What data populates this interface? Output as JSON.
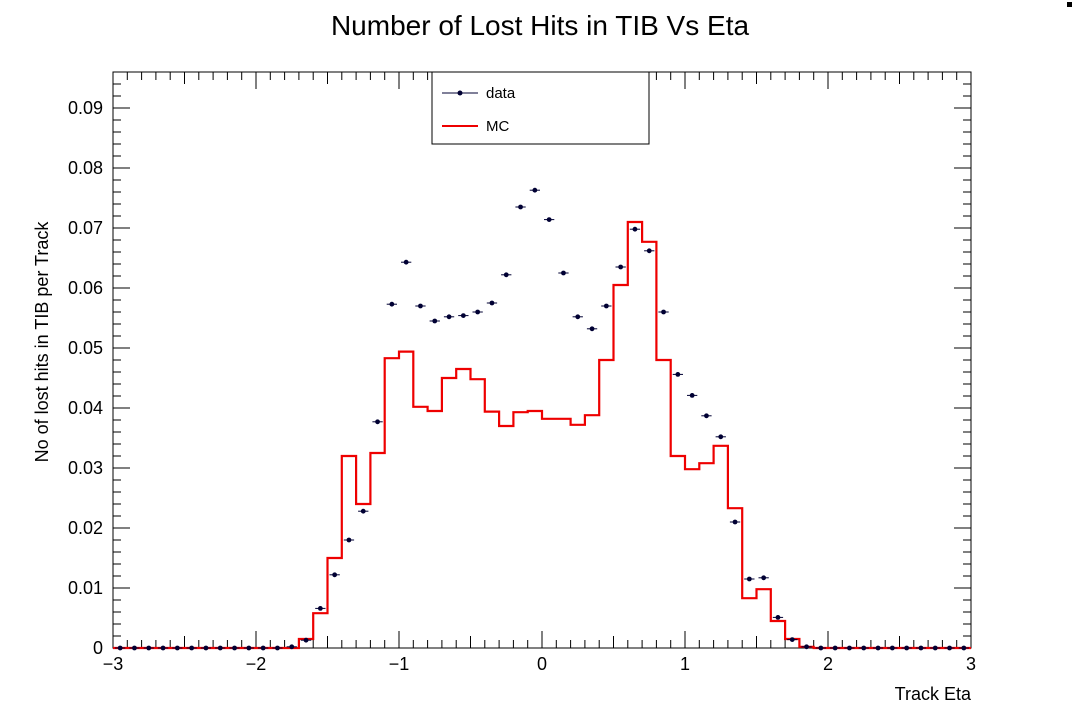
{
  "chart_data": {
    "type": "line",
    "title": "Number of Lost Hits in TIB Vs Eta",
    "xlabel": "Track Eta",
    "ylabel": "No of lost hits in TIB per Track",
    "xlim": [
      -3,
      3
    ],
    "ylim": [
      0,
      0.096
    ],
    "x_ticks": [
      -3,
      -2,
      -1,
      0,
      1,
      2,
      3
    ],
    "x_tick_labels": [
      "−3",
      "−2",
      "−1",
      "0",
      "1",
      "2",
      "3"
    ],
    "y_ticks": [
      0,
      0.01,
      0.02,
      0.03,
      0.04,
      0.05,
      0.06,
      0.07,
      0.08,
      0.09
    ],
    "y_tick_labels": [
      "0",
      "0.01",
      "0.02",
      "0.03",
      "0.04",
      "0.05",
      "0.06",
      "0.07",
      "0.08",
      "0.09"
    ],
    "bin_edges": [
      -3.0,
      -2.9,
      -2.8,
      -2.7,
      -2.6,
      -2.5,
      -2.4,
      -2.3,
      -2.2,
      -2.1,
      -2.0,
      -1.9,
      -1.8,
      -1.7,
      -1.6,
      -1.5,
      -1.4,
      -1.3,
      -1.2,
      -1.1,
      -1.0,
      -0.9,
      -0.8,
      -0.7,
      -0.6,
      -0.5,
      -0.4,
      -0.3,
      -0.2,
      -0.1,
      0.0,
      0.1,
      0.2,
      0.3,
      0.4,
      0.5,
      0.6,
      0.7,
      0.8,
      0.9,
      1.0,
      1.1,
      1.2,
      1.3,
      1.4,
      1.5,
      1.6,
      1.7,
      1.8,
      1.9,
      2.0,
      2.1,
      2.2,
      2.3,
      2.4,
      2.5,
      2.6,
      2.7,
      2.8,
      2.9,
      3.0
    ],
    "series": [
      {
        "name": "data",
        "kind": "points",
        "color": "#000033",
        "values": [
          0,
          0,
          0,
          0,
          0,
          0,
          0,
          0,
          0,
          0,
          0,
          0,
          0.0002,
          0.0013,
          0.0066,
          0.0122,
          0.018,
          0.0228,
          0.0377,
          0.0573,
          0.0643,
          0.057,
          0.0545,
          0.0552,
          0.0554,
          0.056,
          0.0575,
          0.0622,
          0.0735,
          0.0763,
          0.0714,
          0.0625,
          0.0552,
          0.0532,
          0.057,
          0.0635,
          0.0698,
          0.0662,
          0.056,
          0.0456,
          0.0421,
          0.0387,
          0.0352,
          0.021,
          0.0115,
          0.0117,
          0.0051,
          0.0014,
          0.0002,
          0,
          0,
          0,
          0,
          0,
          0,
          0,
          0,
          0,
          0,
          0
        ]
      },
      {
        "name": "MC",
        "kind": "histogram",
        "color": "#ee0000",
        "values": [
          0,
          0,
          0,
          0,
          0,
          0,
          0,
          0,
          0,
          0,
          0,
          0,
          0,
          0.0015,
          0.0058,
          0.015,
          0.032,
          0.024,
          0.0325,
          0.0483,
          0.0494,
          0.0402,
          0.0395,
          0.045,
          0.0465,
          0.0448,
          0.0394,
          0.037,
          0.0393,
          0.0395,
          0.0382,
          0.0382,
          0.0372,
          0.0388,
          0.048,
          0.0605,
          0.071,
          0.0677,
          0.048,
          0.032,
          0.0298,
          0.0308,
          0.0337,
          0.0233,
          0.0083,
          0.0098,
          0.0045,
          0.0015,
          0.0002,
          0,
          0,
          0,
          0,
          0,
          0,
          0,
          0,
          0,
          0,
          0
        ]
      }
    ],
    "legend": {
      "placement": "top-center",
      "entries": [
        "data",
        "MC"
      ]
    },
    "grid": false
  }
}
